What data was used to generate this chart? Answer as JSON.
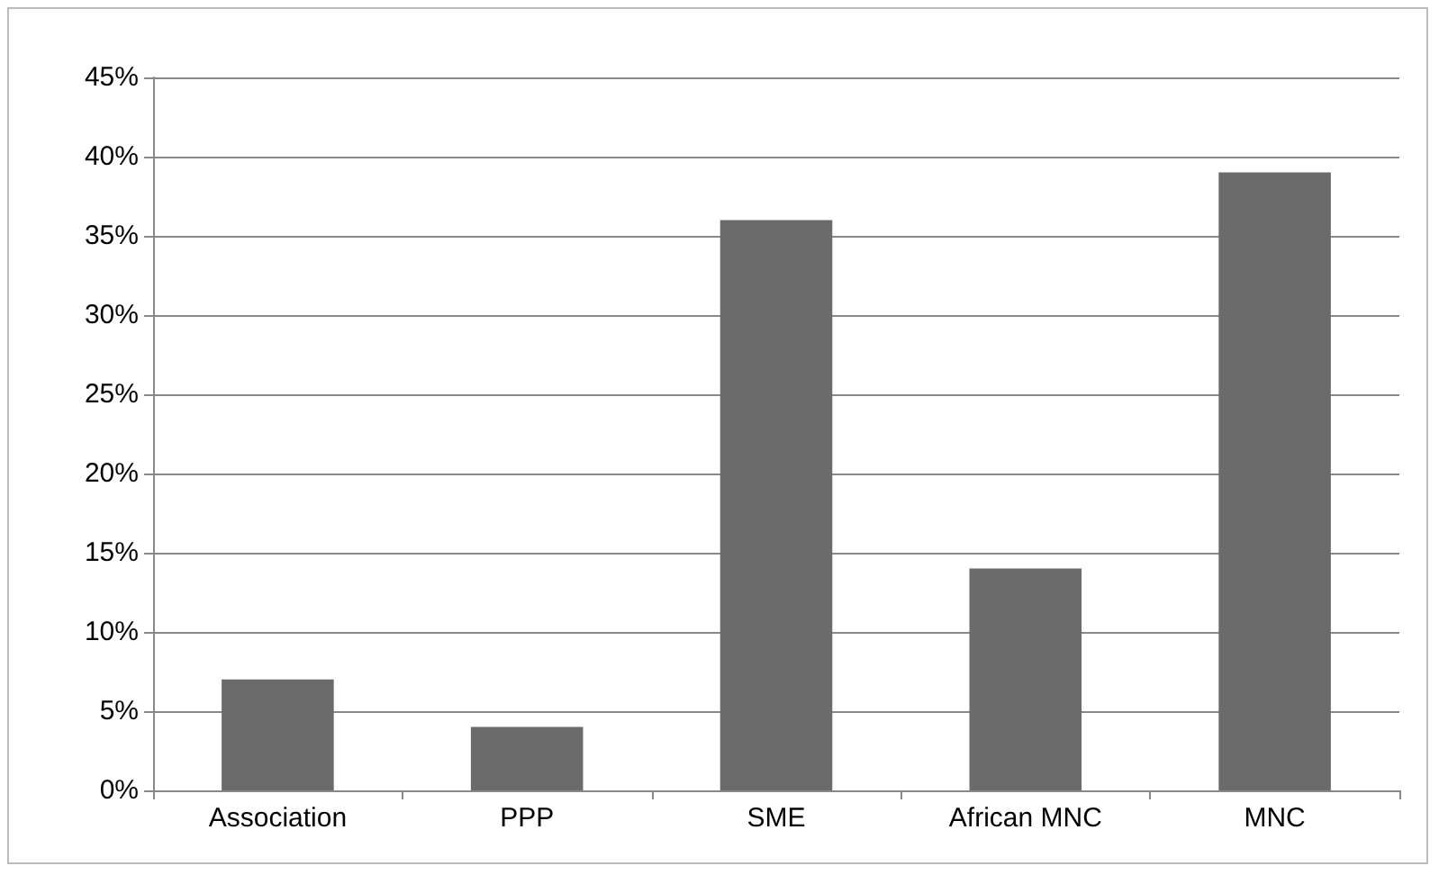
{
  "chart_data": {
    "type": "bar",
    "categories": [
      "Association",
      "PPP",
      "SME",
      "African MNC",
      "MNC"
    ],
    "values": [
      7,
      4,
      36,
      14,
      39
    ],
    "color": "#6b6b6b",
    "ylim": [
      0,
      45
    ],
    "yticks": [
      {
        "value": 0,
        "label": "0%"
      },
      {
        "value": 5,
        "label": "5%"
      },
      {
        "value": 10,
        "label": "10%"
      },
      {
        "value": 15,
        "label": "15%"
      },
      {
        "value": 20,
        "label": "20%"
      },
      {
        "value": 25,
        "label": "25%"
      },
      {
        "value": 30,
        "label": "30%"
      },
      {
        "value": 35,
        "label": "35%"
      },
      {
        "value": 40,
        "label": "40%"
      },
      {
        "value": 45,
        "label": "45%"
      }
    ],
    "grid": "y"
  }
}
